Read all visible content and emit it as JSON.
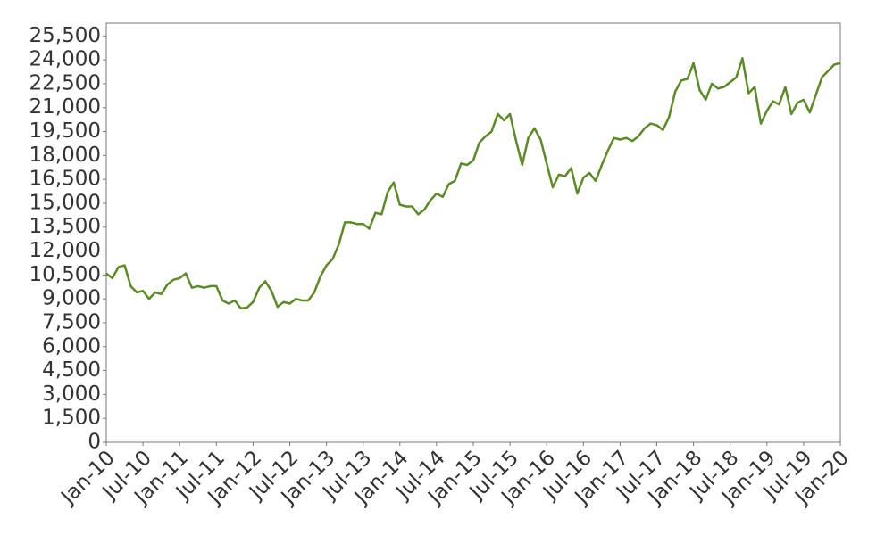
{
  "chart_data": {
    "type": "line",
    "x": [
      "2010-01",
      "2010-02",
      "2010-03",
      "2010-04",
      "2010-05",
      "2010-06",
      "2010-07",
      "2010-08",
      "2010-09",
      "2010-10",
      "2010-11",
      "2010-12",
      "2011-01",
      "2011-02",
      "2011-03",
      "2011-04",
      "2011-05",
      "2011-06",
      "2011-07",
      "2011-08",
      "2011-09",
      "2011-10",
      "2011-11",
      "2011-12",
      "2012-01",
      "2012-02",
      "2012-03",
      "2012-04",
      "2012-05",
      "2012-06",
      "2012-07",
      "2012-08",
      "2012-09",
      "2012-10",
      "2012-11",
      "2012-12",
      "2013-01",
      "2013-02",
      "2013-03",
      "2013-04",
      "2013-05",
      "2013-06",
      "2013-07",
      "2013-08",
      "2013-09",
      "2013-10",
      "2013-11",
      "2013-12",
      "2014-01",
      "2014-02",
      "2014-03",
      "2014-04",
      "2014-05",
      "2014-06",
      "2014-07",
      "2014-08",
      "2014-09",
      "2014-10",
      "2014-11",
      "2014-12",
      "2015-01",
      "2015-02",
      "2015-03",
      "2015-04",
      "2015-05",
      "2015-06",
      "2015-07",
      "2015-08",
      "2015-09",
      "2015-10",
      "2015-11",
      "2015-12",
      "2016-01",
      "2016-02",
      "2016-03",
      "2016-04",
      "2016-05",
      "2016-06",
      "2016-07",
      "2016-08",
      "2016-09",
      "2016-10",
      "2016-11",
      "2016-12",
      "2017-01",
      "2017-02",
      "2017-03",
      "2017-04",
      "2017-05",
      "2017-06",
      "2017-07",
      "2017-08",
      "2017-09",
      "2017-10",
      "2017-11",
      "2017-12",
      "2018-01",
      "2018-02",
      "2018-03",
      "2018-04",
      "2018-05",
      "2018-06",
      "2018-07",
      "2018-08",
      "2018-09",
      "2018-10",
      "2018-11",
      "2018-12",
      "2019-01",
      "2019-02",
      "2019-03",
      "2019-04",
      "2019-05",
      "2019-06",
      "2019-07",
      "2019-08",
      "2019-09",
      "2019-10",
      "2019-11",
      "2019-12",
      "2020-01"
    ],
    "series": [
      {
        "color": "#5a8c23",
        "values": [
          10600,
          10300,
          11000,
          11100,
          9800,
          9400,
          9500,
          9000,
          9400,
          9300,
          9900,
          10200,
          10300,
          10600,
          9700,
          9800,
          9700,
          9800,
          9800,
          8900,
          8700,
          8900,
          8400,
          8450,
          8800,
          9700,
          10100,
          9500,
          8500,
          8800,
          8700,
          9000,
          8900,
          8900,
          9400,
          10400,
          11100,
          11500,
          12400,
          13800,
          13800,
          13700,
          13700,
          13400,
          14400,
          14300,
          15700,
          16300,
          14900,
          14800,
          14800,
          14300,
          14600,
          15200,
          15600,
          15400,
          16200,
          16400,
          17500,
          17400,
          17700,
          18800,
          19200,
          19500,
          20600,
          20200,
          20600,
          18900,
          17400,
          19100,
          19700,
          19000,
          17500,
          16000,
          16800,
          16700,
          17200,
          15600,
          16600,
          16900,
          16400,
          17400,
          18300,
          19100,
          19000,
          19100,
          18900,
          19200,
          19700,
          20000,
          19900,
          19600,
          20400,
          22000,
          22700,
          22800,
          23800,
          22100,
          21500,
          22500,
          22200,
          22300,
          22600,
          22900,
          24100,
          21900,
          22300,
          20000,
          20800,
          21400,
          21200,
          22300,
          20600,
          21300,
          21500,
          20700,
          21800,
          22900,
          23300,
          23700,
          23800
        ]
      }
    ],
    "xlim": [
      "2010-01",
      "2020-01"
    ],
    "xticks": [
      {
        "value": "2010-01",
        "label": "Jan-10"
      },
      {
        "value": "2010-07",
        "label": "Jul-10"
      },
      {
        "value": "2011-01",
        "label": "Jan-11"
      },
      {
        "value": "2011-07",
        "label": "Jul-11"
      },
      {
        "value": "2012-01",
        "label": "Jan-12"
      },
      {
        "value": "2012-07",
        "label": "Jul-12"
      },
      {
        "value": "2013-01",
        "label": "Jan-13"
      },
      {
        "value": "2013-07",
        "label": "Jul-13"
      },
      {
        "value": "2014-01",
        "label": "Jan-14"
      },
      {
        "value": "2014-07",
        "label": "Jul-14"
      },
      {
        "value": "2015-01",
        "label": "Jan-15"
      },
      {
        "value": "2015-07",
        "label": "Jul-15"
      },
      {
        "value": "2016-01",
        "label": "Jan-16"
      },
      {
        "value": "2016-07",
        "label": "Jul-16"
      },
      {
        "value": "2017-01",
        "label": "Jan-17"
      },
      {
        "value": "2017-07",
        "label": "Jul-17"
      },
      {
        "value": "2018-01",
        "label": "Jan-18"
      },
      {
        "value": "2018-07",
        "label": "Jul-18"
      },
      {
        "value": "2019-01",
        "label": "Jan-19"
      },
      {
        "value": "2019-07",
        "label": "Jul-19"
      },
      {
        "value": "2020-01",
        "label": "Jan-20"
      }
    ],
    "ylim": [
      0,
      26300
    ],
    "yticks": [
      0,
      {
        "value": 1500,
        "label": "1,500"
      },
      {
        "value": 3000,
        "label": "3,000"
      },
      {
        "value": 4500,
        "label": "4,500"
      },
      {
        "value": 6000,
        "label": "6,000"
      },
      {
        "value": 7500,
        "label": "7,500"
      },
      {
        "value": 9000,
        "label": "9,000"
      },
      {
        "value": 10500,
        "label": "10,500"
      },
      {
        "value": 12000,
        "label": "12,000"
      },
      {
        "value": 13500,
        "label": "13,500"
      },
      {
        "value": 15000,
        "label": "15,000"
      },
      {
        "value": 16500,
        "label": "16,500"
      },
      {
        "value": 18000,
        "label": "18,000"
      },
      {
        "value": 19500,
        "label": "19,500"
      },
      {
        "value": 21000,
        "label": "21,000"
      },
      {
        "value": 22500,
        "label": "22,500"
      },
      {
        "value": 24000,
        "label": "24,000"
      },
      {
        "value": 25500,
        "label": "25,500"
      }
    ],
    "grid": false
  }
}
